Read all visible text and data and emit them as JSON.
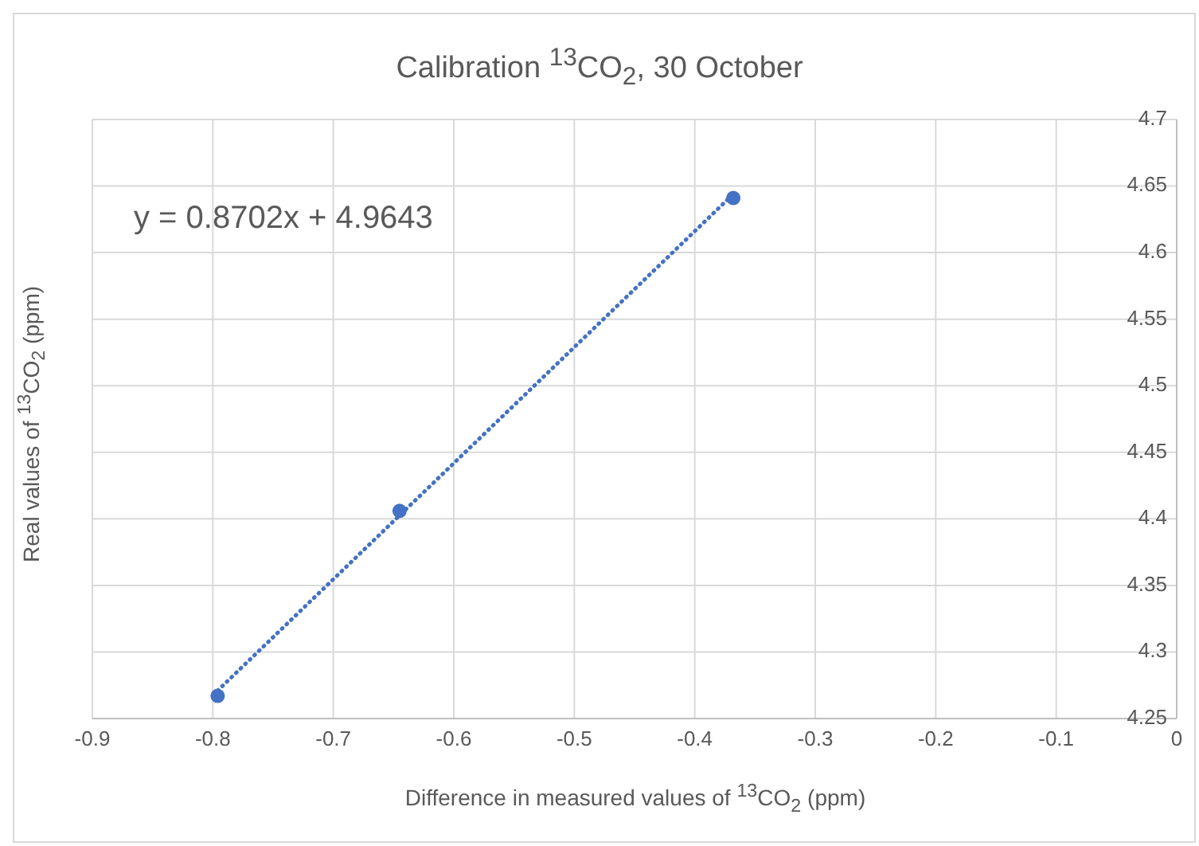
{
  "chart_data": {
    "type": "scatter",
    "title": "Calibration $^{13}$CO$_{2}$, 30 October",
    "xlabel": "Difference in measured values of $^{13}$CO$_{2}$ (ppm)",
    "ylabel": "Real values of $^{13}$CO$_{2}$ (ppm)",
    "annotations": [
      "y = 0.8702x + 4.9643"
    ],
    "xlim": [
      -0.9,
      0
    ],
    "xticks": [
      -0.9,
      -0.8,
      -0.7,
      -0.6,
      -0.5,
      -0.4,
      -0.3,
      -0.2,
      -0.1,
      0
    ],
    "ylim": [
      4.25,
      4.7
    ],
    "yticks": [
      4.25,
      4.3,
      4.35,
      4.4,
      4.45,
      4.5,
      4.55,
      4.6,
      4.65,
      4.7
    ],
    "grid": true,
    "series": [
      {
        "color": "#4472c4",
        "marker": "circle",
        "x": [
          -0.796,
          -0.645,
          -0.368
        ],
        "values": [
          4.267,
          4.406,
          4.641
        ]
      },
      {
        "type": "line",
        "color": "#4472c4",
        "line_style": "dotted",
        "marker": "none",
        "x": [
          -0.796,
          -0.368
        ],
        "values": [
          4.271,
          4.644
        ]
      }
    ]
  }
}
